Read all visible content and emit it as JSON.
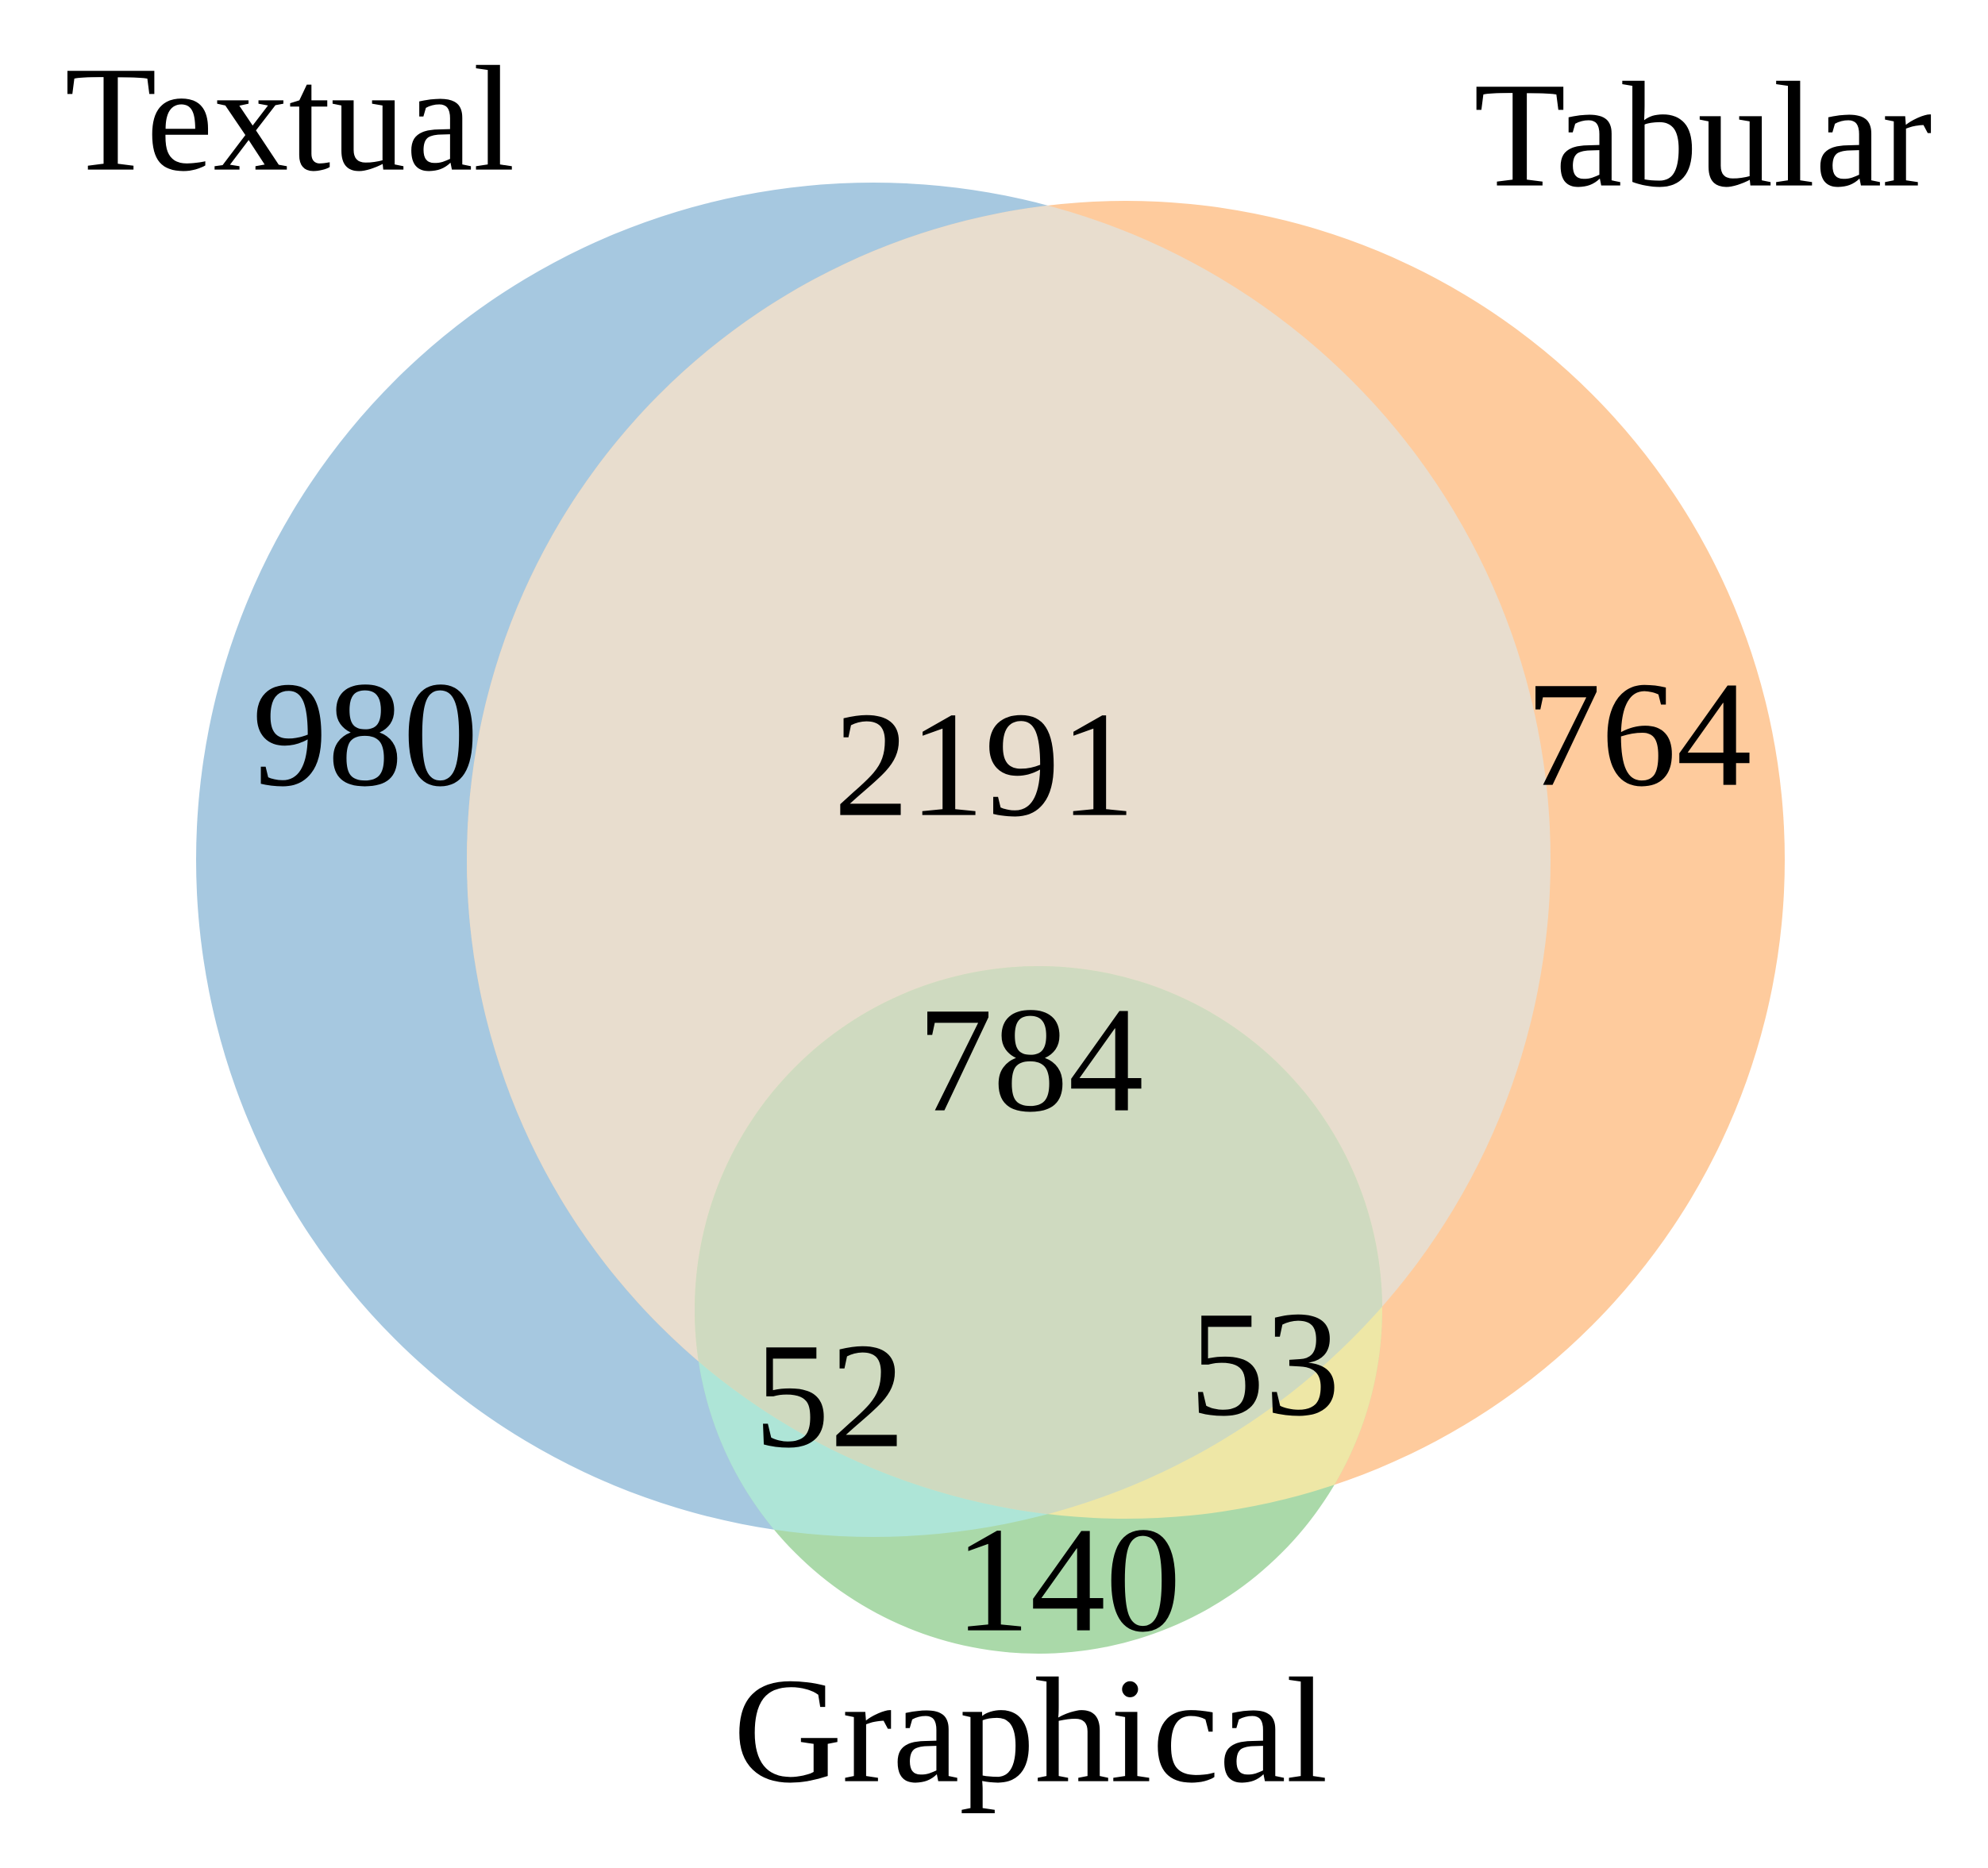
{
  "sets": [
    {
      "key": "textual",
      "label": "Textual",
      "color": "#a6c8e0"
    },
    {
      "key": "tabular",
      "label": "Tabular",
      "color": "#fecb9d"
    },
    {
      "key": "graphical",
      "label": "Graphical",
      "color": "#aad9a9"
    }
  ],
  "overlap_colors": {
    "textual_tabular": "#e8ddce",
    "textual_graphical": "#aee5d7",
    "tabular_graphical": "#eee7a6",
    "all_three": "#cfdac0"
  },
  "regions": {
    "textual_only": "980",
    "tabular_only": "764",
    "graphical_only": "140",
    "textual_tabular": "2191",
    "textual_graphical": "52",
    "tabular_graphical": "53",
    "all_three": "784"
  }
}
